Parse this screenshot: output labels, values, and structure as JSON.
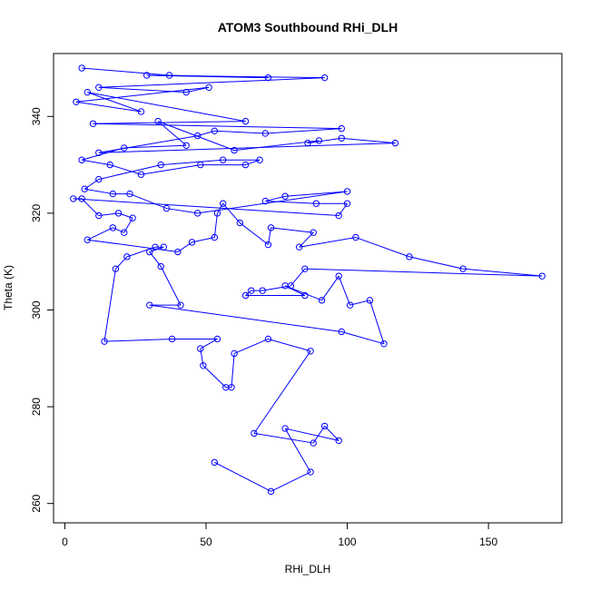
{
  "chart_data": {
    "type": "line",
    "title": "ATOM3 Southbound RHi_DLH",
    "xlabel": "RHi_DLH",
    "ylabel": "Theta (K)",
    "xlim": [
      -4,
      176
    ],
    "ylim": [
      256,
      353
    ],
    "x_ticks": [
      0,
      50,
      100,
      150
    ],
    "y_ticks": [
      260,
      280,
      300,
      320,
      340
    ],
    "x_tick_labels": [
      "0",
      "50",
      "100",
      "150"
    ],
    "y_tick_labels": [
      "260",
      "280",
      "300",
      "320",
      "340"
    ],
    "series": [
      {
        "color": "#0000ff",
        "marker": "open-circle",
        "points": [
          [
            6,
            350
          ],
          [
            37,
            348.5
          ],
          [
            72,
            348
          ],
          [
            29,
            348.5
          ],
          [
            92,
            348
          ],
          [
            12,
            346
          ],
          [
            43,
            345
          ],
          [
            51,
            346
          ],
          [
            4,
            343
          ],
          [
            27,
            341
          ],
          [
            8,
            345
          ],
          [
            64,
            339
          ],
          [
            10,
            338.5
          ],
          [
            98,
            337.5
          ],
          [
            71,
            336.5
          ],
          [
            53,
            337
          ],
          [
            47,
            336
          ],
          [
            12,
            332.5
          ],
          [
            117,
            334.5
          ],
          [
            98,
            335.5
          ],
          [
            86,
            334.5
          ],
          [
            90,
            335
          ],
          [
            60,
            333
          ],
          [
            33,
            339
          ],
          [
            43,
            334
          ],
          [
            21,
            333.5
          ],
          [
            6,
            331
          ],
          [
            16,
            330
          ],
          [
            27,
            328
          ],
          [
            48,
            330
          ],
          [
            64,
            330
          ],
          [
            69,
            331
          ],
          [
            56,
            331
          ],
          [
            34,
            330
          ],
          [
            12,
            327
          ],
          [
            7,
            325
          ],
          [
            17,
            324
          ],
          [
            23,
            324
          ],
          [
            36,
            321
          ],
          [
            47,
            320
          ],
          [
            100,
            324.5
          ],
          [
            78,
            323.5
          ],
          [
            71,
            322.5
          ],
          [
            89,
            322
          ],
          [
            100,
            322
          ],
          [
            97,
            319.5
          ],
          [
            3,
            323
          ],
          [
            6,
            323
          ],
          [
            12,
            319.5
          ],
          [
            19,
            320
          ],
          [
            24,
            319
          ],
          [
            21,
            316
          ],
          [
            17,
            317
          ],
          [
            8,
            314.5
          ],
          [
            40,
            312
          ],
          [
            45,
            314
          ],
          [
            53,
            315
          ],
          [
            54,
            320
          ],
          [
            56,
            322
          ],
          [
            62,
            318
          ],
          [
            72,
            313.5
          ],
          [
            73,
            317
          ],
          [
            88,
            316
          ],
          [
            83,
            313
          ],
          [
            103,
            315
          ],
          [
            122,
            311
          ],
          [
            141,
            308.5
          ],
          [
            169,
            307
          ],
          [
            85,
            308.5
          ],
          [
            80,
            305
          ],
          [
            70,
            304
          ],
          [
            66,
            304
          ],
          [
            64,
            303
          ],
          [
            85,
            303
          ],
          [
            78,
            305
          ],
          [
            91,
            302
          ],
          [
            97,
            307
          ],
          [
            101,
            301
          ],
          [
            108,
            302
          ],
          [
            113,
            293
          ],
          [
            98,
            295.5
          ],
          [
            30,
            301
          ],
          [
            41,
            301
          ],
          [
            34,
            309
          ],
          [
            30,
            312
          ],
          [
            35,
            313
          ],
          [
            32,
            313
          ],
          [
            22,
            311
          ],
          [
            18,
            308.5
          ],
          [
            14,
            293.5
          ],
          [
            38,
            294
          ],
          [
            54,
            294
          ],
          [
            48,
            292
          ],
          [
            49,
            288.5
          ],
          [
            57,
            284
          ],
          [
            59,
            284
          ],
          [
            60,
            291
          ],
          [
            72,
            294
          ],
          [
            87,
            291.5
          ],
          [
            67,
            274.5
          ],
          [
            88,
            272.5
          ],
          [
            92,
            276
          ],
          [
            97,
            273
          ],
          [
            78,
            275.5
          ],
          [
            87,
            266.5
          ],
          [
            73,
            262.5
          ],
          [
            53,
            268.5
          ]
        ]
      }
    ]
  }
}
